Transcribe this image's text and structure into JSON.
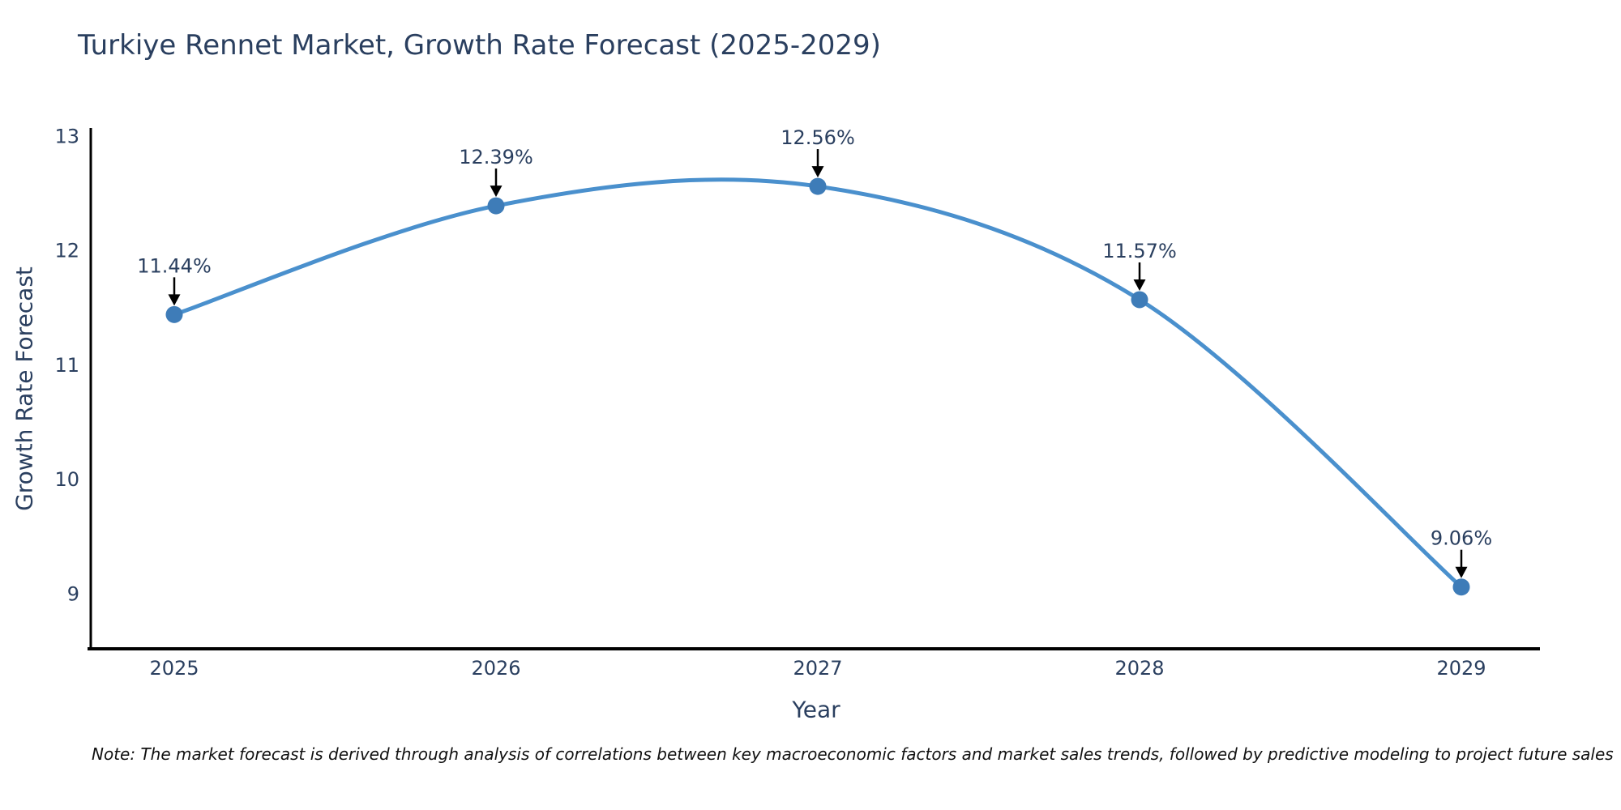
{
  "note": "Note: The market forecast is derived through analysis of correlations between key macroeconomic factors and market sales trends, followed by predictive modeling to project future sales",
  "chart_data": {
    "type": "line",
    "title": "Turkiye Rennet Market, Growth Rate Forecast (2025-2029)",
    "xlabel": "Year",
    "ylabel": "Growth Rate Forecast",
    "x": [
      "2025",
      "2026",
      "2027",
      "2028",
      "2029"
    ],
    "series": [
      {
        "name": "Growth Rate Forecast",
        "values": [
          11.44,
          12.39,
          12.56,
          11.57,
          9.06
        ]
      }
    ],
    "point_labels": [
      "11.44%",
      "12.39%",
      "12.56%",
      "11.57%",
      "9.06%"
    ],
    "line_shape": "spline",
    "grid": false,
    "legend": false,
    "ylim": [
      8.52,
      13.07
    ],
    "yticks": [
      9,
      10,
      11,
      12,
      13
    ],
    "colors": {
      "line": "#4a90cd",
      "marker": "#3e7cb8",
      "axis": "#000000",
      "text": "#2a3f5f",
      "annotation_text": "#2a3f5f",
      "annotation_arrow": "#000000"
    }
  }
}
